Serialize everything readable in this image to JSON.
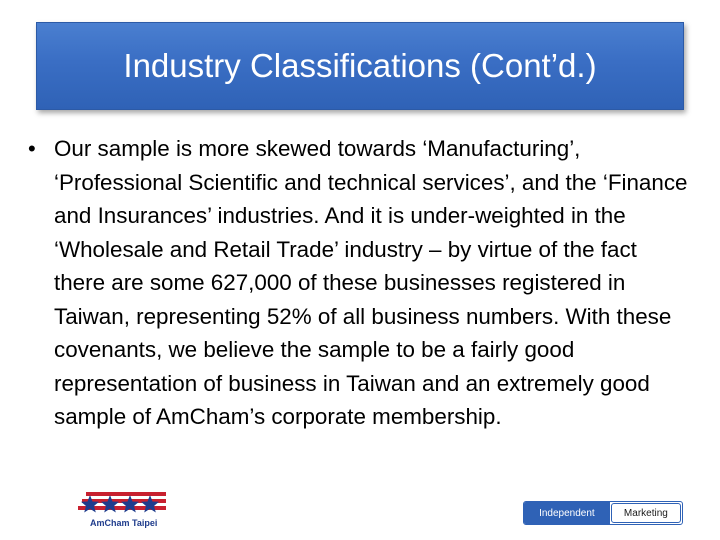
{
  "slide": {
    "title": "Industry Classifications (Cont’d.)",
    "bullet_marker": "•",
    "bullet_text": "Our sample is more skewed towards  ‘Manufacturing’, ‘Professional Scientific and technical services’, and the ‘Finance and Insurances’ industries. And it is under-weighted in the ‘Wholesale and Retail Trade’ industry – by virtue of the fact there are some 627,000 of these businesses registered in Taiwan, representing 52% of all business numbers. With these covenants, we believe the sample to be a fairly good representation of business in Taiwan and an extremely  good sample of AmCham’s corporate membership."
  },
  "footer": {
    "logo_caption": "AmCham Taipei",
    "tabs": [
      {
        "label": "Independent"
      },
      {
        "label": "Marketing"
      }
    ]
  },
  "colors": {
    "title_bar": "#3a6ec4",
    "logo_red": "#c8202f",
    "logo_blue": "#1f3c8c"
  }
}
